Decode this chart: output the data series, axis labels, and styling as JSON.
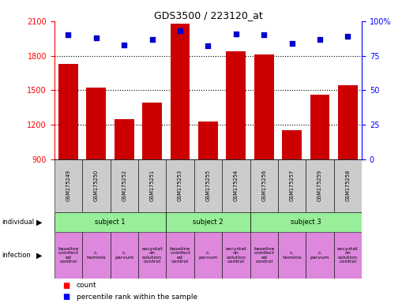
{
  "title": "GDS3500 / 223120_at",
  "samples": [
    "GSM175249",
    "GSM175250",
    "GSM175252",
    "GSM175251",
    "GSM175253",
    "GSM175255",
    "GSM175254",
    "GSM175256",
    "GSM175257",
    "GSM175259",
    "GSM175258"
  ],
  "counts": [
    1730,
    1520,
    1250,
    1390,
    2080,
    1230,
    1840,
    1810,
    1150,
    1460,
    1540
  ],
  "percentiles": [
    90,
    88,
    83,
    87,
    93,
    82,
    91,
    90,
    84,
    87,
    89
  ],
  "ylim_left": [
    900,
    2100
  ],
  "ylim_right": [
    0,
    100
  ],
  "yticks_left": [
    900,
    1200,
    1500,
    1800,
    2100
  ],
  "yticks_right": [
    0,
    25,
    50,
    75,
    100
  ],
  "bar_color": "#cc0000",
  "dot_color": "#0000cc",
  "subjects": [
    {
      "label": "subject 1",
      "start": 0,
      "end": 4
    },
    {
      "label": "subject 2",
      "start": 4,
      "end": 7
    },
    {
      "label": "subject 3",
      "start": 7,
      "end": 11
    }
  ],
  "infections": [
    {
      "label": "baseline\nuninfect\ned\ncontrol",
      "start": 0,
      "end": 1
    },
    {
      "label": "c.\nhominis",
      "start": 1,
      "end": 2
    },
    {
      "label": "c.\nparvum",
      "start": 2,
      "end": 3
    },
    {
      "label": "excystat\non\nsolution\ncontrol",
      "start": 3,
      "end": 4
    },
    {
      "label": "baseline\nuninfect\ned\ncontrol",
      "start": 4,
      "end": 5
    },
    {
      "label": "c.\nparvum",
      "start": 5,
      "end": 6
    },
    {
      "label": "excystat\non\nsolution\ncontrol",
      "start": 6,
      "end": 7
    },
    {
      "label": "baseline\nuninfect\ned\ncontrol",
      "start": 7,
      "end": 8
    },
    {
      "label": "c.\nhominis",
      "start": 8,
      "end": 9
    },
    {
      "label": "c.\nparvum",
      "start": 9,
      "end": 10
    },
    {
      "label": "excystat\non\nsolution\ncontrol",
      "start": 10,
      "end": 11
    }
  ],
  "subject_color": "#99ee99",
  "infection_color": "#dd88dd",
  "sample_bg_color": "#cccccc",
  "tick_fontsize": 7,
  "annotation_fontsize": 6,
  "infection_fontsize": 4.5,
  "legend_fontsize": 6.5,
  "grid_ticks": [
    1200,
    1500,
    1800
  ]
}
